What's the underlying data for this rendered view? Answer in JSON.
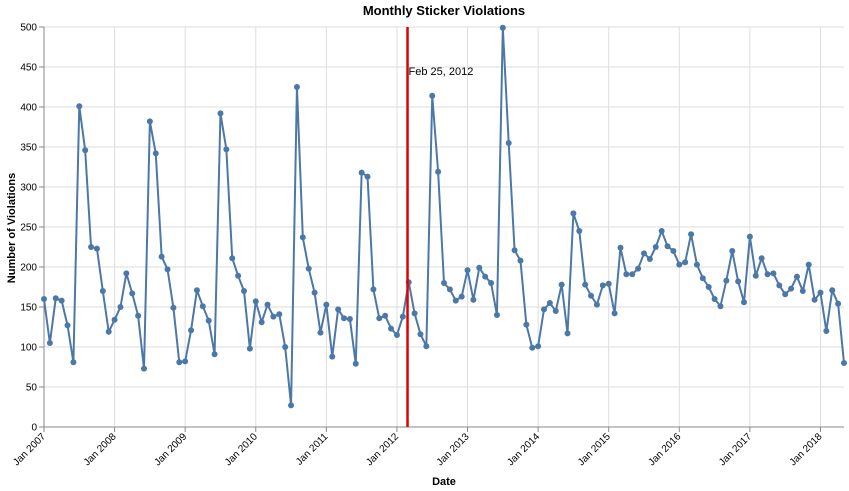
{
  "chart_data": {
    "type": "line",
    "title": "Monthly Sticker Violations",
    "xlabel": "Date",
    "ylabel": "Number of Violations",
    "ylim": [
      0,
      500
    ],
    "yticks": [
      0,
      50,
      100,
      150,
      200,
      250,
      300,
      350,
      400,
      450,
      500
    ],
    "xlim": [
      "2007-01",
      "2018-05"
    ],
    "xticks": [
      {
        "date": "2007-01",
        "label": "Jan 2007"
      },
      {
        "date": "2008-01",
        "label": "Jan 2008"
      },
      {
        "date": "2009-01",
        "label": "Jan 2009"
      },
      {
        "date": "2010-01",
        "label": "Jan 2010"
      },
      {
        "date": "2011-01",
        "label": "Jan 2011"
      },
      {
        "date": "2012-01",
        "label": "Jan 2012"
      },
      {
        "date": "2013-01",
        "label": "Jan 2013"
      },
      {
        "date": "2014-01",
        "label": "Jan 2014"
      },
      {
        "date": "2015-01",
        "label": "Jan 2015"
      },
      {
        "date": "2016-01",
        "label": "Jan 2016"
      },
      {
        "date": "2017-01",
        "label": "Jan 2017"
      },
      {
        "date": "2018-01",
        "label": "Jan 2018"
      }
    ],
    "grid": true,
    "series": [
      {
        "color": "#4c78a8",
        "x": [
          "2007-01",
          "2007-02",
          "2007-03",
          "2007-04",
          "2007-05",
          "2007-06",
          "2007-07",
          "2007-08",
          "2007-09",
          "2007-10",
          "2007-11",
          "2007-12",
          "2008-01",
          "2008-02",
          "2008-03",
          "2008-04",
          "2008-05",
          "2008-06",
          "2008-07",
          "2008-08",
          "2008-09",
          "2008-10",
          "2008-11",
          "2008-12",
          "2009-01",
          "2009-02",
          "2009-03",
          "2009-04",
          "2009-05",
          "2009-06",
          "2009-07",
          "2009-08",
          "2009-09",
          "2009-10",
          "2009-11",
          "2009-12",
          "2010-01",
          "2010-02",
          "2010-03",
          "2010-04",
          "2010-05",
          "2010-06",
          "2010-07",
          "2010-08",
          "2010-09",
          "2010-10",
          "2010-11",
          "2010-12",
          "2011-01",
          "2011-02",
          "2011-03",
          "2011-04",
          "2011-05",
          "2011-06",
          "2011-07",
          "2011-08",
          "2011-09",
          "2011-10",
          "2011-11",
          "2011-12",
          "2012-01",
          "2012-02",
          "2012-03",
          "2012-04",
          "2012-05",
          "2012-06",
          "2012-07",
          "2012-08",
          "2012-09",
          "2012-10",
          "2012-11",
          "2012-12",
          "2013-01",
          "2013-02",
          "2013-03",
          "2013-04",
          "2013-05",
          "2013-06",
          "2013-07",
          "2013-08",
          "2013-09",
          "2013-10",
          "2013-11",
          "2013-12",
          "2014-01",
          "2014-02",
          "2014-03",
          "2014-04",
          "2014-05",
          "2014-06",
          "2014-07",
          "2014-08",
          "2014-09",
          "2014-10",
          "2014-11",
          "2014-12",
          "2015-01",
          "2015-02",
          "2015-03",
          "2015-04",
          "2015-05",
          "2015-06",
          "2015-07",
          "2015-08",
          "2015-09",
          "2015-10",
          "2015-11",
          "2015-12",
          "2016-01",
          "2016-02",
          "2016-03",
          "2016-04",
          "2016-05",
          "2016-06",
          "2016-07",
          "2016-08",
          "2016-09",
          "2016-10",
          "2016-11",
          "2016-12",
          "2017-01",
          "2017-02",
          "2017-03",
          "2017-04",
          "2017-05",
          "2017-06",
          "2017-07",
          "2017-08",
          "2017-09",
          "2017-10",
          "2017-11",
          "2017-12",
          "2018-01",
          "2018-02",
          "2018-03",
          "2018-04",
          "2018-05"
        ],
        "values": [
          160,
          105,
          161,
          158,
          127,
          81,
          401,
          346,
          225,
          223,
          170,
          119,
          134,
          150,
          192,
          167,
          139,
          73,
          382,
          342,
          213,
          197,
          149,
          81,
          82,
          121,
          171,
          151,
          133,
          91,
          392,
          347,
          211,
          189,
          170,
          98,
          157,
          131,
          153,
          138,
          141,
          100,
          27,
          425,
          237,
          198,
          168,
          118,
          153,
          88,
          147,
          136,
          135,
          79,
          318,
          313,
          172,
          136,
          139,
          123,
          115,
          138,
          181,
          142,
          116,
          101,
          414,
          319,
          180,
          172,
          158,
          163,
          196,
          159,
          199,
          188,
          180,
          140,
          499,
          355,
          221,
          208,
          128,
          99,
          101,
          147,
          155,
          145,
          178,
          117,
          267,
          245,
          178,
          164,
          153,
          177,
          179,
          142,
          224,
          191,
          191,
          198,
          217,
          210,
          225,
          245,
          226,
          220,
          203,
          206,
          241,
          203,
          186,
          175,
          160,
          151,
          183,
          220,
          182,
          156,
          238,
          189,
          211,
          191,
          192,
          177,
          166,
          173,
          188,
          170,
          203,
          159,
          168,
          120,
          171,
          154,
          80
        ]
      }
    ],
    "annotations": [
      {
        "date": "2012-02-25",
        "label": "Feb 25, 2012",
        "color": "#e00000"
      }
    ]
  }
}
